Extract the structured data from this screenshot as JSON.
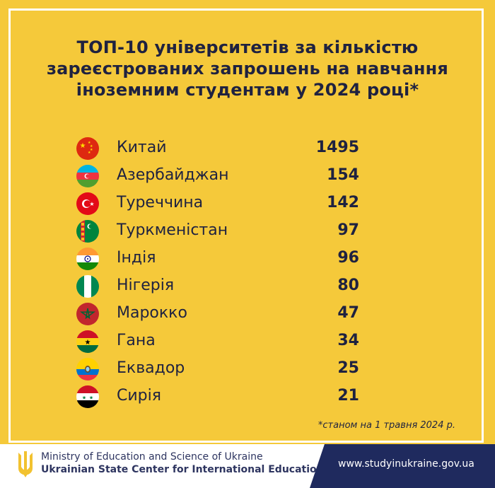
{
  "title": {
    "line1": "ТОП-10 університетів за кількістю",
    "line2": "зареєстрованих запрошень на навчання",
    "line3": "іноземним студентам  у 2024 році*"
  },
  "rows": [
    {
      "country": "Китай",
      "value": "1495",
      "flag_icon": "china-flag-icon"
    },
    {
      "country": "Азербайджан",
      "value": "154",
      "flag_icon": "azerbaijan-flag-icon"
    },
    {
      "country": "Туреччина",
      "value": "142",
      "flag_icon": "turkey-flag-icon"
    },
    {
      "country": "Туркменістан",
      "value": "97",
      "flag_icon": "turkmenistan-flag-icon"
    },
    {
      "country": "Індія",
      "value": "96",
      "flag_icon": "india-flag-icon"
    },
    {
      "country": "Нігерія",
      "value": "80",
      "flag_icon": "nigeria-flag-icon"
    },
    {
      "country": "Марокко",
      "value": "47",
      "flag_icon": "morocco-flag-icon"
    },
    {
      "country": "Гана",
      "value": "34",
      "flag_icon": "ghana-flag-icon"
    },
    {
      "country": "Еквадор",
      "value": "25",
      "flag_icon": "ecuador-flag-icon"
    },
    {
      "country": "Сирія",
      "value": "21",
      "flag_icon": "syria-flag-icon"
    }
  ],
  "note": "*станом на 1 травня 2024 р.",
  "footer": {
    "ministry": "Ministry of Education and Science of Ukraine",
    "center": "Ukrainian State Center for International Education",
    "url": "www.studyinukraine.gov.ua"
  },
  "colors": {
    "background": "#f5c93a",
    "text": "#1f2240",
    "footer_band": "#1f2a5e"
  }
}
